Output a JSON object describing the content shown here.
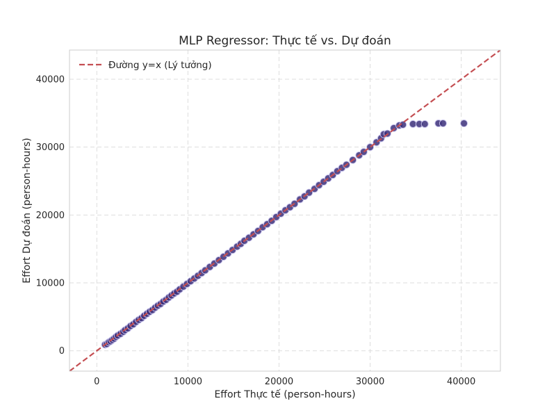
{
  "chart_data": {
    "type": "scatter",
    "title": "MLP Regressor: Thực tế vs. Dự đoán",
    "xlabel": "Effort Thực tế (person-hours)",
    "ylabel": "Effort Dự đoán (person-hours)",
    "xlim": [
      -3000,
      44300
    ],
    "ylim": [
      -3000,
      44300
    ],
    "xticks": [
      0,
      10000,
      20000,
      30000,
      40000
    ],
    "yticks": [
      0,
      10000,
      20000,
      30000,
      40000
    ],
    "grid": true,
    "legend_position": "top-left",
    "reference_line": {
      "name": "Đường y=x (Lý tưởng)",
      "color": "#c44e52",
      "style": "dashed"
    },
    "marker_color": "#3b2f7a",
    "marker_edge_color": "#c9c4ec",
    "series": [
      {
        "points": [
          [
            900,
            900
          ],
          [
            1100,
            1000
          ],
          [
            1300,
            1250
          ],
          [
            1500,
            1400
          ],
          [
            1700,
            1600
          ],
          [
            1900,
            1800
          ],
          [
            2100,
            2050
          ],
          [
            2300,
            2250
          ],
          [
            2600,
            2500
          ],
          [
            2900,
            2800
          ],
          [
            3100,
            3050
          ],
          [
            3400,
            3300
          ],
          [
            3700,
            3650
          ],
          [
            4000,
            3900
          ],
          [
            4300,
            4250
          ],
          [
            4600,
            4550
          ],
          [
            4900,
            4800
          ],
          [
            5200,
            5150
          ],
          [
            5500,
            5450
          ],
          [
            5800,
            5750
          ],
          [
            6100,
            6000
          ],
          [
            6400,
            6350
          ],
          [
            6700,
            6650
          ],
          [
            7000,
            6900
          ],
          [
            7300,
            7250
          ],
          [
            7600,
            7500
          ],
          [
            7900,
            7850
          ],
          [
            8200,
            8150
          ],
          [
            8500,
            8450
          ],
          [
            8800,
            8700
          ],
          [
            9100,
            9050
          ],
          [
            9500,
            9450
          ],
          [
            9900,
            9850
          ],
          [
            10300,
            10250
          ],
          [
            10700,
            10650
          ],
          [
            11100,
            11050
          ],
          [
            11500,
            11450
          ],
          [
            11900,
            11850
          ],
          [
            12400,
            12350
          ],
          [
            12900,
            12850
          ],
          [
            13400,
            13350
          ],
          [
            13900,
            13850
          ],
          [
            14400,
            14350
          ],
          [
            14900,
            14850
          ],
          [
            15400,
            15350
          ],
          [
            15800,
            15750
          ],
          [
            16200,
            16200
          ],
          [
            16700,
            16650
          ],
          [
            17200,
            17150
          ],
          [
            17700,
            17650
          ],
          [
            18200,
            18200
          ],
          [
            18700,
            18650
          ],
          [
            19200,
            19150
          ],
          [
            19700,
            19700
          ],
          [
            20200,
            20200
          ],
          [
            20700,
            20700
          ],
          [
            21200,
            21150
          ],
          [
            21700,
            21650
          ],
          [
            22300,
            22300
          ],
          [
            22800,
            22750
          ],
          [
            23300,
            23300
          ],
          [
            23900,
            23850
          ],
          [
            24400,
            24400
          ],
          [
            24900,
            24900
          ],
          [
            25400,
            25400
          ],
          [
            25900,
            25900
          ],
          [
            26400,
            26450
          ],
          [
            26900,
            26950
          ],
          [
            27400,
            27400
          ],
          [
            28100,
            28100
          ],
          [
            28800,
            28800
          ],
          [
            29300,
            29300
          ],
          [
            30000,
            30000
          ],
          [
            30700,
            30700
          ],
          [
            31200,
            31300
          ],
          [
            31500,
            31900
          ],
          [
            31900,
            32000
          ],
          [
            32600,
            32800
          ],
          [
            33200,
            33200
          ],
          [
            33600,
            33300
          ],
          [
            34700,
            33400
          ],
          [
            35400,
            33400
          ],
          [
            36000,
            33400
          ],
          [
            37500,
            33500
          ],
          [
            38000,
            33500
          ],
          [
            40300,
            33500
          ]
        ]
      }
    ]
  }
}
